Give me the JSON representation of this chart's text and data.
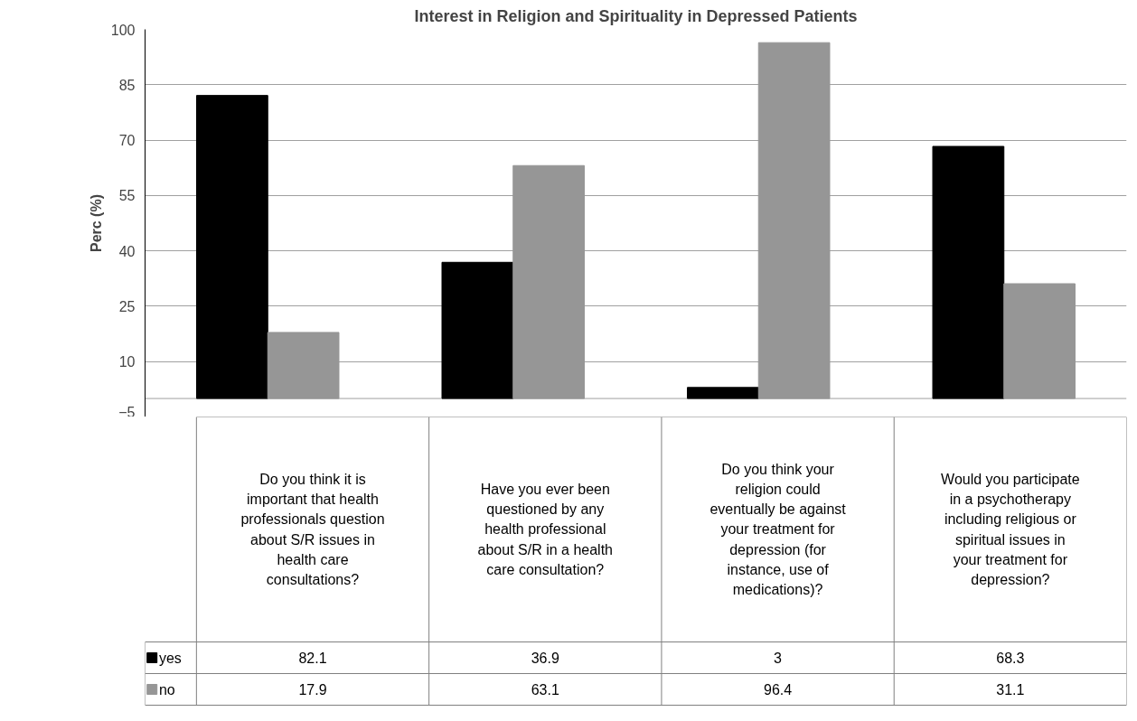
{
  "chart_data": {
    "type": "bar",
    "title": "Interest in Religion and Spirituality in Depressed Patients",
    "ylabel": "Perc (%)",
    "categories": [
      "Do you think it is important that health professionals question about S/R issues in health care consultations?",
      "Have you ever been questioned by any health professional about S/R in a health care consultation?",
      "Do you think your religion could eventually be against your treatment for depression (for instance, use of medications)?",
      "Would you participate in a psychotherapy including religious or spiritual issues in your treatment for depression?"
    ],
    "series": [
      {
        "name": "yes",
        "color": "#000000",
        "values": [
          82.1,
          36.9,
          3,
          68.3
        ]
      },
      {
        "name": "no",
        "color": "#969696",
        "values": [
          17.9,
          63.1,
          96.4,
          31.1
        ]
      }
    ],
    "ylim": [
      -5,
      100
    ],
    "yticks": [
      -5,
      10,
      25,
      40,
      55,
      70,
      85,
      100
    ],
    "grid": "y",
    "legend": "bottom",
    "data_labels": true
  }
}
